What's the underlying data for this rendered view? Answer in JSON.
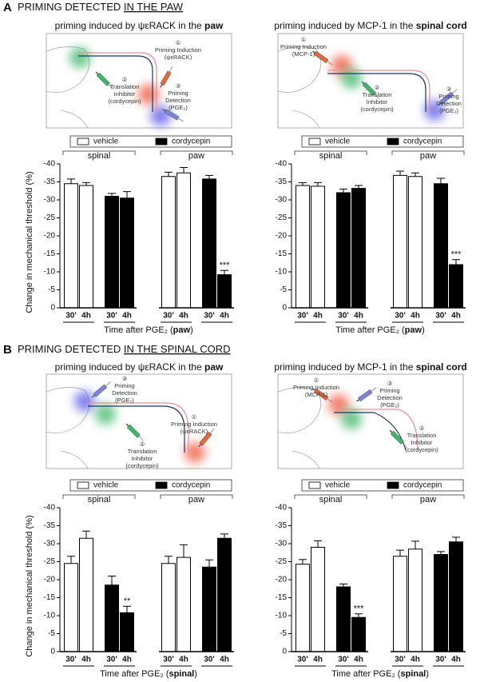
{
  "panels": [
    {
      "letter": "A",
      "title": [
        "PRIMING DETECTED ",
        "IN THE PAW"
      ]
    },
    {
      "letter": "B",
      "title": [
        "PRIMING DETECTED ",
        "IN THE SPINAL CORD"
      ]
    }
  ],
  "diagrams": [
    {
      "labels": [
        [
          "①",
          "Priming Induction",
          "(ψεRACK)"
        ],
        [
          "②",
          "Translation",
          "Inhibitor",
          "(cordycepin)"
        ],
        [
          "③",
          "Priming",
          "Detection",
          "(PGE₂)"
        ]
      ]
    },
    {
      "labels": [
        [
          "①",
          "Priming Induction",
          "(MCP-1)"
        ],
        [
          "②",
          "Translation",
          "Inhibitor",
          "(cordycepin)"
        ],
        [
          "③",
          "Priming",
          "Detection",
          "(PGE₂)"
        ]
      ]
    },
    {
      "labels": [
        [
          "③",
          "Priming",
          "Detection",
          "(PGE₂)"
        ],
        [
          "①",
          "Priming Induction",
          "(ψεRACK)"
        ],
        [
          "②",
          "Translation",
          "Inhibitor",
          "(cordycepin)"
        ]
      ]
    },
    {
      "labels": [
        [
          "①",
          "Priming Induction",
          "(MCP-1)"
        ],
        [
          "③",
          "Priming",
          "Detection",
          "(PGE₂)"
        ],
        [
          "②",
          "Translation",
          "Inhibitor",
          "(cordycepin)"
        ]
      ]
    }
  ],
  "chart_data": [
    {
      "type": "bar",
      "title": [
        "priming induced by ψεRACK in the ",
        "paw"
      ],
      "ylabel": "Change in mechanical threshold (%)",
      "xlabel": [
        "Time after PGE₂ (",
        "paw",
        ")"
      ],
      "categories": [
        "30'",
        "4h",
        "30'",
        "4h",
        "30'",
        "4h",
        "30'",
        "4h"
      ],
      "groups": [
        "spinal",
        "paw"
      ],
      "series": [
        {
          "name": "vehicle",
          "color": "#ffffff",
          "values": [
            -34.5,
            -34,
            null,
            null,
            -36.5,
            -37.5,
            null,
            null
          ],
          "errors": [
            1.3,
            0.8,
            null,
            null,
            1.2,
            1.5,
            null,
            null
          ]
        },
        {
          "name": "cordycepin",
          "color": "#000000",
          "values": [
            null,
            null,
            -31,
            -30.5,
            null,
            null,
            -35.8,
            -9.2
          ],
          "errors": [
            null,
            null,
            0.8,
            1.8,
            null,
            null,
            1.0,
            1.2
          ]
        }
      ],
      "annotations": [
        {
          "text": "***",
          "series": 1,
          "index": 7
        }
      ],
      "ylim": [
        0,
        -40
      ],
      "yticks": [
        -40,
        -35,
        -30,
        -25,
        -20,
        -15,
        -10,
        -5,
        0
      ]
    },
    {
      "type": "bar",
      "title": [
        "priming induced by MCP-1 in the ",
        "spinal cord"
      ],
      "xlabel": [
        "Time after PGE₂ (",
        "paw",
        ")"
      ],
      "categories": [
        "30'",
        "4h",
        "30'",
        "4h",
        "30'",
        "4h",
        "30'",
        "4h"
      ],
      "groups": [
        "spinal",
        "paw"
      ],
      "series": [
        {
          "name": "vehicle",
          "color": "#ffffff",
          "values": [
            -34,
            -33.8,
            null,
            null,
            -36.8,
            -36.5,
            null,
            null
          ],
          "errors": [
            0.8,
            1.0,
            null,
            null,
            1.2,
            1.0,
            null,
            null
          ]
        },
        {
          "name": "cordycepin",
          "color": "#000000",
          "values": [
            null,
            null,
            -32,
            -33.2,
            null,
            null,
            -34.5,
            -12
          ],
          "errors": [
            null,
            null,
            1.0,
            0.8,
            null,
            null,
            1.5,
            1.4
          ]
        }
      ],
      "annotations": [
        {
          "text": "***",
          "series": 1,
          "index": 7
        }
      ],
      "ylim": [
        0,
        -40
      ],
      "yticks": [
        -40,
        -35,
        -30,
        -25,
        -20,
        -15,
        -10,
        -5,
        0
      ]
    },
    {
      "type": "bar",
      "title": [
        "priming induced by ψεRACK in the ",
        "paw"
      ],
      "ylabel": "Change in mechanical threshold (%)",
      "xlabel": [
        "Time after PGE₂ (",
        "spinal",
        ")"
      ],
      "categories": [
        "30'",
        "4h",
        "30'",
        "4h",
        "30'",
        "4h",
        "30'",
        "4h"
      ],
      "groups": [
        "spinal",
        "paw"
      ],
      "series": [
        {
          "name": "vehicle",
          "color": "#ffffff",
          "values": [
            -24.5,
            -31.5,
            null,
            null,
            -24.5,
            -26.2,
            null,
            null
          ],
          "errors": [
            2.0,
            2.0,
            null,
            null,
            2.0,
            3.5,
            null,
            null
          ]
        },
        {
          "name": "cordycepin",
          "color": "#000000",
          "values": [
            null,
            null,
            -18.5,
            -10.8,
            null,
            null,
            -23.5,
            -31.5
          ],
          "errors": [
            null,
            null,
            2.5,
            1.8,
            null,
            null,
            2.0,
            1.2
          ]
        }
      ],
      "annotations": [
        {
          "text": "**",
          "series": 1,
          "index": 3
        }
      ],
      "ylim": [
        0,
        -40
      ],
      "yticks": [
        -40,
        -35,
        -30,
        -25,
        -20,
        -15,
        -10,
        -5,
        0
      ]
    },
    {
      "type": "bar",
      "title": [
        "priming induced by MCP-1 in the ",
        "spinal cord"
      ],
      "xlabel": [
        "Time after PGE₂ (",
        "spinal",
        ")"
      ],
      "categories": [
        "30'",
        "4h",
        "30'",
        "4h",
        "30'",
        "4h",
        "30'",
        "4h"
      ],
      "groups": [
        "spinal",
        "paw"
      ],
      "series": [
        {
          "name": "vehicle",
          "color": "#ffffff",
          "values": [
            -24.3,
            -29,
            null,
            null,
            -26.5,
            -28.5,
            null,
            null
          ],
          "errors": [
            1.3,
            1.8,
            null,
            null,
            1.7,
            2.2,
            null,
            null
          ]
        },
        {
          "name": "cordycepin",
          "color": "#000000",
          "values": [
            null,
            null,
            -18,
            -9.5,
            null,
            null,
            -27,
            -30.5
          ],
          "errors": [
            null,
            null,
            0.8,
            1.0,
            null,
            null,
            0.8,
            1.3
          ]
        }
      ],
      "annotations": [
        {
          "text": "***",
          "series": 1,
          "index": 3
        }
      ],
      "ylim": [
        0,
        -40
      ],
      "yticks": [
        -40,
        -35,
        -30,
        -25,
        -20,
        -15,
        -10,
        -5,
        0
      ]
    }
  ]
}
